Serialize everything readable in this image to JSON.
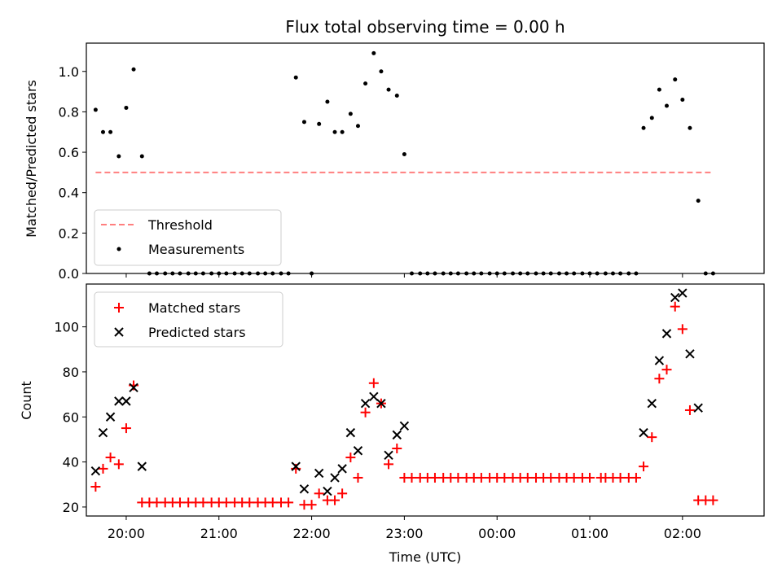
{
  "chart_data": [
    {
      "type": "scatter",
      "title": "Flux total observing time = 0.00 h",
      "ylabel": "Matched/Predicted stars",
      "xlabel": "",
      "ylim": [
        0,
        1.14
      ],
      "yticks": [
        0.0,
        0.2,
        0.4,
        0.6,
        0.8,
        1.0
      ],
      "xticks": [
        "20:00",
        "21:00",
        "22:00",
        "23:00",
        "00:00",
        "01:00",
        "02:00"
      ],
      "xlim_hours": [
        19.57,
        26.88
      ],
      "legend_position": "lower-left",
      "grid": false,
      "threshold": {
        "name": "Threshold",
        "value": 0.5,
        "x_range": [
          19.67,
          26.33
        ],
        "color": "#ff7f7f"
      },
      "series": [
        {
          "name": "Measurements",
          "color": "#000000",
          "points": [
            [
              19.67,
              0.81
            ],
            [
              19.75,
              0.7
            ],
            [
              19.83,
              0.7
            ],
            [
              19.92,
              0.58
            ],
            [
              20.0,
              0.82
            ],
            [
              20.08,
              1.01
            ],
            [
              20.17,
              0.58
            ],
            [
              20.25,
              0
            ],
            [
              20.33,
              0
            ],
            [
              20.42,
              0
            ],
            [
              20.5,
              0
            ],
            [
              20.58,
              0
            ],
            [
              20.67,
              0
            ],
            [
              20.75,
              0
            ],
            [
              20.83,
              0
            ],
            [
              20.92,
              0
            ],
            [
              21.0,
              0
            ],
            [
              21.08,
              0
            ],
            [
              21.17,
              0
            ],
            [
              21.25,
              0
            ],
            [
              21.33,
              0
            ],
            [
              21.42,
              0
            ],
            [
              21.5,
              0
            ],
            [
              21.58,
              0
            ],
            [
              21.67,
              0
            ],
            [
              21.75,
              0
            ],
            [
              21.83,
              0.97
            ],
            [
              21.92,
              0.75
            ],
            [
              22.0,
              0
            ],
            [
              22.08,
              0.74
            ],
            [
              22.17,
              0.85
            ],
            [
              22.25,
              0.7
            ],
            [
              22.33,
              0.7
            ],
            [
              22.42,
              0.79
            ],
            [
              22.5,
              0.73
            ],
            [
              22.58,
              0.94
            ],
            [
              22.67,
              1.09
            ],
            [
              22.75,
              1.0
            ],
            [
              22.83,
              0.91
            ],
            [
              22.92,
              0.88
            ],
            [
              23.0,
              0.59
            ],
            [
              23.08,
              0
            ],
            [
              23.17,
              0
            ],
            [
              23.25,
              0
            ],
            [
              23.33,
              0
            ],
            [
              23.42,
              0
            ],
            [
              23.5,
              0
            ],
            [
              23.58,
              0
            ],
            [
              23.67,
              0
            ],
            [
              23.75,
              0
            ],
            [
              23.83,
              0
            ],
            [
              23.92,
              0
            ],
            [
              24.0,
              0
            ],
            [
              24.08,
              0
            ],
            [
              24.17,
              0
            ],
            [
              24.25,
              0
            ],
            [
              24.33,
              0
            ],
            [
              24.42,
              0
            ],
            [
              24.5,
              0
            ],
            [
              24.58,
              0
            ],
            [
              24.67,
              0
            ],
            [
              24.75,
              0
            ],
            [
              24.83,
              0
            ],
            [
              24.92,
              0
            ],
            [
              25.0,
              0
            ],
            [
              25.08,
              0
            ],
            [
              25.17,
              0
            ],
            [
              25.25,
              0
            ],
            [
              25.33,
              0
            ],
            [
              25.42,
              0
            ],
            [
              25.5,
              0
            ],
            [
              25.58,
              0.72
            ],
            [
              25.67,
              0.77
            ],
            [
              25.75,
              0.91
            ],
            [
              25.83,
              0.83
            ],
            [
              25.92,
              0.96
            ],
            [
              26.0,
              0.86
            ],
            [
              26.08,
              0.72
            ],
            [
              26.17,
              0.36
            ],
            [
              26.25,
              0
            ],
            [
              26.33,
              0
            ]
          ]
        }
      ]
    },
    {
      "type": "scatter",
      "title": "",
      "ylabel": "Count",
      "xlabel": "Time (UTC)",
      "ylim": [
        16,
        119
      ],
      "yticks": [
        20,
        40,
        60,
        80,
        100
      ],
      "xticks": [
        "20:00",
        "21:00",
        "22:00",
        "23:00",
        "00:00",
        "01:00",
        "02:00"
      ],
      "xlim_hours": [
        19.57,
        26.88
      ],
      "legend_position": "upper-left",
      "grid": false,
      "series": [
        {
          "name": "Matched stars",
          "marker": "plus",
          "color": "#ff0000",
          "points": [
            [
              19.67,
              29
            ],
            [
              19.75,
              37
            ],
            [
              19.83,
              42
            ],
            [
              19.92,
              39
            ],
            [
              20.0,
              55
            ],
            [
              20.08,
              74
            ],
            [
              20.17,
              22
            ],
            [
              20.25,
              22
            ],
            [
              20.33,
              22
            ],
            [
              20.42,
              22
            ],
            [
              20.5,
              22
            ],
            [
              20.58,
              22
            ],
            [
              20.67,
              22
            ],
            [
              20.75,
              22
            ],
            [
              20.83,
              22
            ],
            [
              20.92,
              22
            ],
            [
              21.0,
              22
            ],
            [
              21.08,
              22
            ],
            [
              21.17,
              22
            ],
            [
              21.25,
              22
            ],
            [
              21.33,
              22
            ],
            [
              21.42,
              22
            ],
            [
              21.5,
              22
            ],
            [
              21.58,
              22
            ],
            [
              21.67,
              22
            ],
            [
              21.75,
              22
            ],
            [
              21.83,
              37
            ],
            [
              21.92,
              21
            ],
            [
              22.0,
              21
            ],
            [
              22.08,
              26
            ],
            [
              22.17,
              23
            ],
            [
              22.25,
              23
            ],
            [
              22.33,
              26
            ],
            [
              22.42,
              42
            ],
            [
              22.5,
              33
            ],
            [
              22.58,
              62
            ],
            [
              22.67,
              75
            ],
            [
              22.75,
              66
            ],
            [
              22.83,
              39
            ],
            [
              22.92,
              46
            ],
            [
              23.0,
              33
            ],
            [
              23.08,
              33
            ],
            [
              23.17,
              33
            ],
            [
              23.25,
              33
            ],
            [
              23.33,
              33
            ],
            [
              23.42,
              33
            ],
            [
              23.5,
              33
            ],
            [
              23.58,
              33
            ],
            [
              23.67,
              33
            ],
            [
              23.75,
              33
            ],
            [
              23.83,
              33
            ],
            [
              23.92,
              33
            ],
            [
              24.0,
              33
            ],
            [
              24.08,
              33
            ],
            [
              24.17,
              33
            ],
            [
              24.25,
              33
            ],
            [
              24.33,
              33
            ],
            [
              24.42,
              33
            ],
            [
              24.5,
              33
            ],
            [
              24.58,
              33
            ],
            [
              24.67,
              33
            ],
            [
              24.75,
              33
            ],
            [
              24.83,
              33
            ],
            [
              24.92,
              33
            ],
            [
              25.0,
              33
            ],
            [
              25.12,
              33
            ],
            [
              25.17,
              33
            ],
            [
              25.25,
              33
            ],
            [
              25.33,
              33
            ],
            [
              25.42,
              33
            ],
            [
              25.5,
              33
            ],
            [
              25.58,
              38
            ],
            [
              25.67,
              51
            ],
            [
              25.75,
              77
            ],
            [
              25.83,
              81
            ],
            [
              25.92,
              109
            ],
            [
              26.0,
              99
            ],
            [
              26.08,
              63
            ],
            [
              26.17,
              23
            ],
            [
              26.25,
              23
            ],
            [
              26.33,
              23
            ]
          ]
        },
        {
          "name": "Predicted stars",
          "marker": "x",
          "color": "#000000",
          "points": [
            [
              19.67,
              36
            ],
            [
              19.75,
              53
            ],
            [
              19.83,
              60
            ],
            [
              19.92,
              67
            ],
            [
              20.0,
              67
            ],
            [
              20.08,
              73
            ],
            [
              20.17,
              38
            ],
            [
              21.83,
              38
            ],
            [
              21.92,
              28
            ],
            [
              22.08,
              35
            ],
            [
              22.17,
              27
            ],
            [
              22.25,
              33
            ],
            [
              22.33,
              37
            ],
            [
              22.42,
              53
            ],
            [
              22.5,
              45
            ],
            [
              22.58,
              66
            ],
            [
              22.67,
              69
            ],
            [
              22.75,
              66
            ],
            [
              22.83,
              43
            ],
            [
              22.92,
              52
            ],
            [
              23.0,
              56
            ],
            [
              25.58,
              53
            ],
            [
              25.67,
              66
            ],
            [
              25.75,
              85
            ],
            [
              25.83,
              97
            ],
            [
              25.92,
              113
            ],
            [
              26.0,
              115
            ],
            [
              26.08,
              88
            ],
            [
              26.17,
              64
            ]
          ]
        }
      ]
    }
  ]
}
